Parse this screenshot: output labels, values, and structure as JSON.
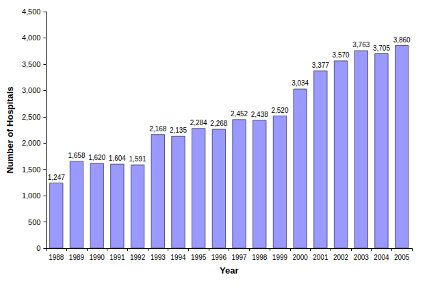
{
  "chart_data": {
    "type": "bar",
    "x_label": "Year",
    "y_label": "Number of Hospitals",
    "categories": [
      "1988",
      "1989",
      "1990",
      "1991",
      "1992",
      "1993",
      "1994",
      "1995",
      "1996",
      "1997",
      "1998",
      "1999",
      "2000",
      "2001",
      "2002",
      "2003",
      "2004",
      "2005"
    ],
    "values": [
      1247,
      1658,
      1620,
      1604,
      1591,
      2168,
      2135,
      2284,
      2268,
      2452,
      2438,
      2520,
      3034,
      3377,
      3570,
      3763,
      3705,
      3860
    ],
    "value_labels": [
      "1,247",
      "1,658",
      "1,620",
      "1,604",
      "1,591",
      "2,168",
      "2,135",
      "2,284",
      "2,268",
      "2,452",
      "2,438",
      "2,520",
      "3,034",
      "3,377",
      "3,570",
      "3,763",
      "3,705",
      "3,860"
    ],
    "color": "#9999ff",
    "ylim": [
      0,
      4500
    ],
    "yticks": [
      0,
      500,
      {
        "value": 1000,
        "label": "1,000"
      },
      {
        "value": 1500,
        "label": "1,500"
      },
      {
        "value": 2000,
        "label": "2,000"
      },
      {
        "value": 2500,
        "label": "2,500"
      },
      {
        "value": 3000,
        "label": "3,000"
      },
      {
        "value": 3500,
        "label": "3,500"
      },
      {
        "value": 4000,
        "label": "4,000"
      },
      {
        "value": 4500,
        "label": "4,500"
      }
    ],
    "grid": false,
    "data_labels": true
  }
}
